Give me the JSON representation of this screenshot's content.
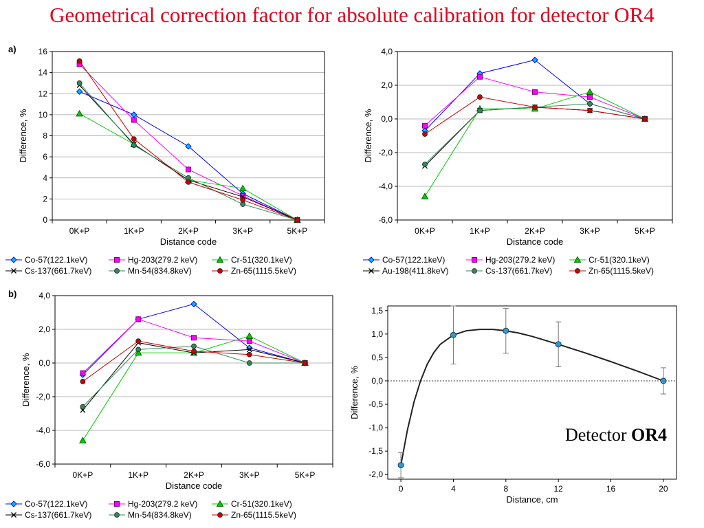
{
  "title": "Geometrical correction factor for absolute calibration for detector OR4",
  "annotation": {
    "text": "Detector ",
    "bold": "OR4"
  },
  "chart_data": [
    {
      "id": "a",
      "tag": "a)",
      "type": "line",
      "categories": [
        "0K+P",
        "1K+P",
        "2K+P",
        "3K+P",
        "5K+P"
      ],
      "xlabel": "Distance code",
      "ylabel": "Difference, %",
      "ylim": [
        0,
        16
      ],
      "yticks": [
        0,
        2,
        4,
        6,
        8,
        10,
        12,
        14,
        16
      ],
      "ytick_labels": [
        "0",
        "2",
        "4",
        "6",
        "8",
        "10",
        "12",
        "14",
        "16"
      ],
      "grid": true,
      "legend": "bottom",
      "series": [
        {
          "name": "Co-57(122.1keV)",
          "color": "#0000ff",
          "marker": "diamond",
          "fill": "#00c0ff",
          "values": [
            12.2,
            10.0,
            7.0,
            2.5,
            0.0
          ]
        },
        {
          "name": "Hg-203(279.2 keV)",
          "color": "#ff00ff",
          "marker": "square",
          "fill": "#ff00ff",
          "values": [
            14.8,
            9.5,
            4.8,
            2.3,
            0.0
          ]
        },
        {
          "name": "Cr-51(320.1keV)",
          "color": "#00cc00",
          "marker": "triangle",
          "fill": "#00cc00",
          "values": [
            10.1,
            7.2,
            3.8,
            3.0,
            0.0
          ]
        },
        {
          "name": "Cs-137(661.7keV)",
          "color": "#000000",
          "marker": "x",
          "fill": "#000000",
          "values": [
            12.8,
            7.2,
            3.8,
            2.2,
            0.0
          ]
        },
        {
          "name": "Mn-54(834.8keV)",
          "color": "#2e8b57",
          "marker": "circle",
          "fill": "#2e8b57",
          "values": [
            13.0,
            7.1,
            4.0,
            1.5,
            0.0
          ]
        },
        {
          "name": "Zn-65(1115.5keV)",
          "color": "#cc0000",
          "marker": "circle",
          "fill": "#cc0000",
          "values": [
            15.1,
            7.7,
            3.6,
            1.9,
            0.0
          ]
        }
      ]
    },
    {
      "id": "tr",
      "tag": "",
      "type": "line",
      "categories": [
        "0K+P",
        "1K+P",
        "2K+P",
        "3K+P",
        "5K+P"
      ],
      "xlabel": "Distance code",
      "ylabel": "Difference, %",
      "ylim": [
        -6,
        4
      ],
      "yticks": [
        -6,
        -4,
        -2,
        0,
        2,
        4
      ],
      "ytick_labels": [
        "-6,0",
        "-4,0",
        "-2,0",
        "0,0",
        "2,0",
        "4,0"
      ],
      "grid": true,
      "legend": "bottom",
      "series": [
        {
          "name": "Co-57(122.1keV)",
          "color": "#0000ff",
          "marker": "diamond",
          "fill": "#00c0ff",
          "values": [
            -0.7,
            2.7,
            3.5,
            0.9,
            0.0
          ]
        },
        {
          "name": "Hg-203(279.2 keV)",
          "color": "#ff00ff",
          "marker": "square",
          "fill": "#ff00ff",
          "values": [
            -0.4,
            2.5,
            1.6,
            1.3,
            0.0
          ]
        },
        {
          "name": "Cr-51(320.1keV)",
          "color": "#00cc00",
          "marker": "triangle",
          "fill": "#00cc00",
          "values": [
            -4.6,
            0.6,
            0.6,
            1.6,
            0.0
          ]
        },
        {
          "name": "Au-198(411.8keV)",
          "color": "#000000",
          "marker": "x",
          "fill": "#000000",
          "values": [
            -2.8,
            0.5,
            0.7,
            0.5,
            0.0
          ]
        },
        {
          "name": "Cs-137(661.7keV)",
          "color": "#2e8b57",
          "marker": "circle",
          "fill": "#2e8b57",
          "values": [
            -2.7,
            0.5,
            0.7,
            0.9,
            0.0
          ]
        },
        {
          "name": "Zn-65(1115.5keV)",
          "color": "#cc0000",
          "marker": "circle",
          "fill": "#cc0000",
          "values": [
            -0.9,
            1.3,
            0.7,
            0.5,
            0.0
          ]
        }
      ]
    },
    {
      "id": "b",
      "tag": "b)",
      "type": "line",
      "categories": [
        "0K+P",
        "1K+P",
        "2K+P",
        "3K+P",
        "5K+P"
      ],
      "xlabel": "Distance code",
      "ylabel": "Difference, %",
      "ylim": [
        -6,
        4
      ],
      "yticks": [
        -6,
        -4,
        -2,
        0,
        2,
        4
      ],
      "ytick_labels": [
        "-6,0",
        "-4,0",
        "-2,0",
        "0,0",
        "2,0",
        "4,0"
      ],
      "grid": true,
      "legend": "bottom",
      "series": [
        {
          "name": "Co-57(122.1keV)",
          "color": "#0000ff",
          "marker": "diamond",
          "fill": "#00c0ff",
          "values": [
            -0.7,
            2.6,
            3.5,
            0.9,
            0.0
          ]
        },
        {
          "name": "Hg-203(279.2 keV)",
          "color": "#ff00ff",
          "marker": "square",
          "fill": "#ff00ff",
          "values": [
            -0.6,
            2.6,
            1.5,
            1.3,
            0.0
          ]
        },
        {
          "name": "Cr-51(320.1keV)",
          "color": "#00cc00",
          "marker": "triangle",
          "fill": "#00cc00",
          "values": [
            -4.6,
            0.6,
            0.6,
            1.6,
            0.0
          ]
        },
        {
          "name": "Cs-137(661.7keV)",
          "color": "#000000",
          "marker": "x",
          "fill": "#000000",
          "values": [
            -2.8,
            1.2,
            0.6,
            0.8,
            0.0
          ]
        },
        {
          "name": "Mn-54(834.8keV)",
          "color": "#2e8b57",
          "marker": "circle",
          "fill": "#2e8b57",
          "values": [
            -2.6,
            0.8,
            1.0,
            0.0,
            0.0
          ]
        },
        {
          "name": "Zn-65(1115.5keV)",
          "color": "#cc0000",
          "marker": "circle",
          "fill": "#cc0000",
          "values": [
            -1.1,
            1.3,
            0.7,
            0.5,
            0.0
          ]
        }
      ]
    },
    {
      "id": "br",
      "tag": "",
      "type": "scatter",
      "xlabel": "Distance, cm",
      "ylabel": "Difference, %",
      "xlim": [
        -1,
        21
      ],
      "xticks": [
        0,
        4,
        8,
        12,
        16,
        20
      ],
      "ylim": [
        -2.1,
        1.6
      ],
      "yticks": [
        -2.0,
        -1.5,
        -1.0,
        -0.5,
        0.0,
        0.5,
        1.0,
        1.5
      ],
      "ytick_labels": [
        "-2,0",
        "-1,5",
        "-1,0",
        "-0,5",
        "0,0",
        "0,5",
        "1,0",
        "1,5"
      ],
      "grid": false,
      "points": [
        {
          "x": 0,
          "y": -1.8,
          "err": 0.27
        },
        {
          "x": 4,
          "y": 0.98,
          "err": 0.62
        },
        {
          "x": 8,
          "y": 1.07,
          "err": 0.48
        },
        {
          "x": 12,
          "y": 0.78,
          "err": 0.48
        },
        {
          "x": 20,
          "y": 0.0,
          "err": 0.28
        }
      ],
      "fit_curve": {
        "x": [
          0,
          0.5,
          1,
          1.5,
          2,
          2.5,
          3,
          4,
          5,
          6,
          7,
          8,
          9,
          10,
          12,
          14,
          16,
          18,
          20
        ],
        "y": [
          -1.8,
          -1.05,
          -0.45,
          0.0,
          0.35,
          0.6,
          0.78,
          0.98,
          1.07,
          1.1,
          1.1,
          1.07,
          1.02,
          0.95,
          0.78,
          0.6,
          0.41,
          0.21,
          0.0
        ]
      },
      "reference_line_y": 0,
      "marker_color": "#3399cc"
    }
  ]
}
